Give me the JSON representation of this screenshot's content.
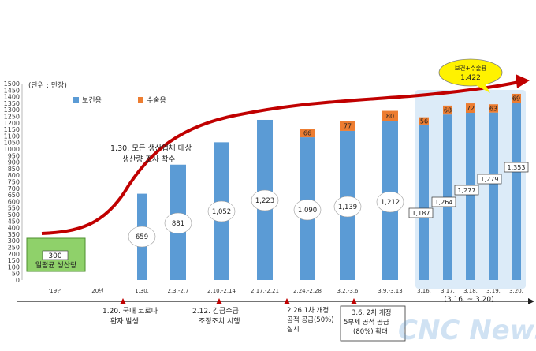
{
  "chart_data": {
    "type": "bar",
    "unit_label": "(단위 : 만장)",
    "ylim": [
      0,
      1500
    ],
    "yticks": [
      0,
      50,
      100,
      150,
      200,
      250,
      300,
      350,
      400,
      450,
      500,
      550,
      600,
      650,
      700,
      750,
      800,
      850,
      900,
      950,
      1000,
      1050,
      1100,
      1150,
      1200,
      1250,
      1300,
      1350,
      1400,
      1450,
      1500
    ],
    "categories": [
      "1.30.",
      "2.3.-2.7",
      "2.10.-2.14",
      "2.17.-2.21",
      "2.24.-2.28",
      "3.2.-3.6",
      "3.9.-3.13",
      "3.16.",
      "3.17.",
      "3.18.",
      "3.19.",
      "3.20."
    ],
    "series": [
      {
        "name": "보건용",
        "color": "#5B9BD5",
        "values": [
          659,
          881,
          1052,
          1223,
          1090,
          1139,
          1212,
          1187,
          1264,
          1277,
          1279,
          1353
        ]
      },
      {
        "name": "수술용",
        "color": "#ED7D31",
        "values": [
          null,
          null,
          null,
          null,
          66,
          77,
          80,
          56,
          68,
          72,
          63,
          69
        ]
      }
    ],
    "baseline": {
      "value": 300,
      "text": "일평균 생산량",
      "period_labels": [
        "'19년",
        "'20년"
      ]
    },
    "highlight": {
      "label": "(3.16. ~ 3.20)"
    },
    "peak_callout": {
      "text": "보건+수술용",
      "value": "1,422"
    },
    "annotations": [
      {
        "lines": [
          "1.30. 모든 생산업체 대상",
          "생산량 조사 착수"
        ]
      },
      {
        "lines": [
          "1.20. 국내 코로나",
          "환자 발생"
        ]
      },
      {
        "lines": [
          "2.12. 긴급수급",
          "조정조치 시행"
        ]
      },
      {
        "lines": [
          "2.26.1차 개정",
          "공적 공급(50%)",
          "실시"
        ]
      },
      {
        "lines": [
          "3.6. 2차 개정",
          "5부제 공적 공급",
          "(80%) 확대"
        ]
      }
    ],
    "watermark": "CNC News",
    "colors": {
      "trend": "#C00000",
      "highlight_fill": "#D6E8F7",
      "baseline_box": "#8FD16A",
      "callout_fill": "#FFF200",
      "event_marker": "#C00000"
    }
  }
}
